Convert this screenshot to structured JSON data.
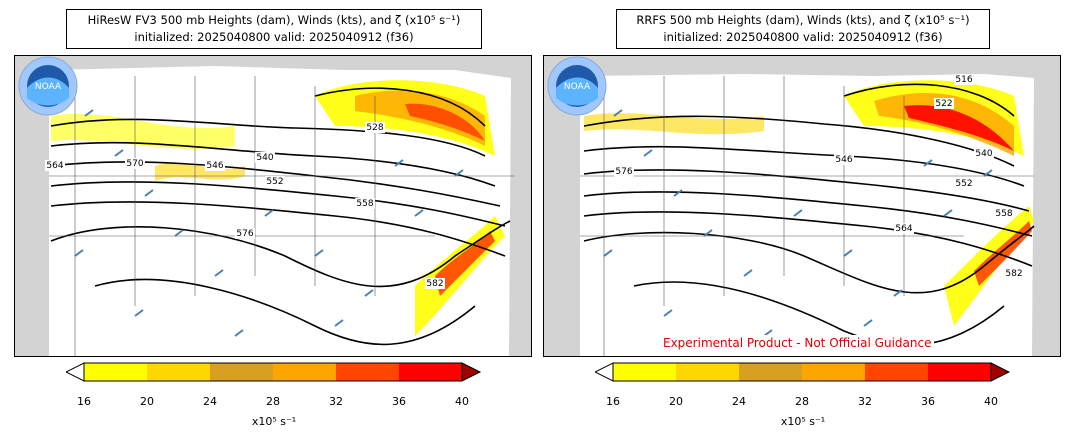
{
  "panels": [
    {
      "title_line1": "HiResW FV3 500 mb Heights (dam), Winds (kts), and ζ (x10⁵ s⁻¹)",
      "title_line2": "initialized: 2025040800 valid: 2025040912 (f36)",
      "contour_labels": [
        "528",
        "540",
        "546",
        "552",
        "558",
        "564",
        "570",
        "576",
        "582"
      ],
      "disclaimer": ""
    },
    {
      "title_line1": "RRFS 500 mb Heights (dam), Winds (kts), and ζ (x10⁵ s⁻¹)",
      "title_line2": "initialized: 2025040800 valid: 2025040912 (f36)",
      "contour_labels": [
        "516",
        "522",
        "540",
        "546",
        "552",
        "558",
        "564",
        "576",
        "582"
      ],
      "disclaimer": "Experimental Product - Not Official Guidance"
    }
  ],
  "logo": {
    "text": "NOAA",
    "icon": "noaa-logo-icon"
  },
  "colorbar": {
    "ticks": [
      "16",
      "20",
      "24",
      "28",
      "32",
      "36",
      "40"
    ],
    "unit_label": "x10⁵ s⁻¹",
    "colors": [
      "#ffff00",
      "#ffd700",
      "#d8a020",
      "#ffa500",
      "#ff4500",
      "#ff0000",
      "#a00000"
    ]
  },
  "colors": {
    "land": "#ffffff",
    "background": "#d3d3d3",
    "barb": "#4682b4",
    "contour": "#000000",
    "disclaimer": "#e00000"
  }
}
